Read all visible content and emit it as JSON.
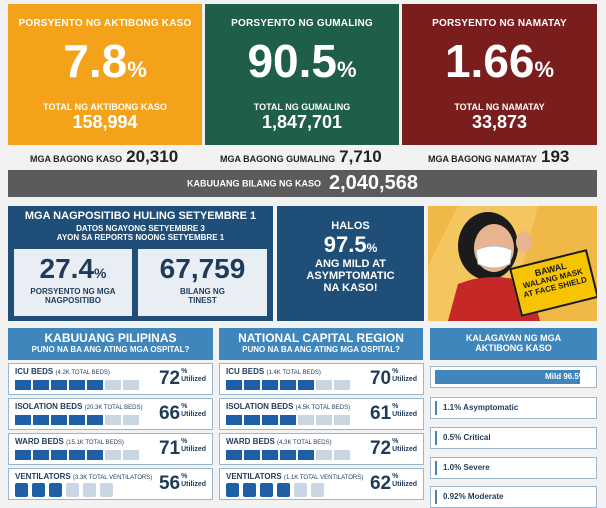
{
  "colors": {
    "orange": "#f5a21b",
    "green": "#1f5e4b",
    "maroon": "#7a1d1d",
    "navy": "#1f4e79",
    "band": "#5b5b5b",
    "section": "#3f86bc"
  },
  "active": {
    "label": "PORSYENTO NG AKTIBONG KASO",
    "pct": "7.8",
    "pct_sign": "%",
    "total_label": "TOTAL NG AKTIBONG KASO",
    "total": "158,994"
  },
  "recovered": {
    "label": "PORSYENTO NG GUMALING",
    "pct": "90.5",
    "pct_sign": "%",
    "total_label": "TOTAL NG GUMALING",
    "total": "1,847,701"
  },
  "deaths": {
    "label": "PORSYENTO NG NAMATAY",
    "pct": "1.66",
    "pct_sign": "%",
    "total_label": "TOTAL NG NAMATAY",
    "total": "33,873"
  },
  "new": {
    "cases_label": "MGA BAGONG KASO",
    "cases": "20,310",
    "recovered_label": "MGA BAGONG GUMALING",
    "recovered": "7,710",
    "deaths_label": "MGA BAGONG NAMATAY",
    "deaths": "193"
  },
  "total_cases": {
    "label": "KABUUANG BILANG NG KASO",
    "value": "2,040,568"
  },
  "positivity": {
    "title": "MGA NAGPOSITIBO HULING SETYEMBRE 1",
    "sub1": "DATOS NGAYONG SETYEMBRE 3",
    "sub2": "AYON SA REPORTS NOONG SETYEMBRE 1",
    "rate": "27.4",
    "rate_sign": "%",
    "rate_label1": "PORSYENTO NG MGA",
    "rate_label2": "NAGPOSITIBO",
    "tested": "67,759",
    "tested_label1": "BILANG NG",
    "tested_label2": "TINEST"
  },
  "mild": {
    "line1": "HALOS",
    "pct": "97.5",
    "pct_sign": "%",
    "line2": "ANG MILD AT",
    "line3": "ASYMPTOMATIC",
    "line4": "NA KASO!"
  },
  "banner": {
    "line1": "BAWAL",
    "line2": "WALANG MASK",
    "line3": "AT FACE SHIELD"
  },
  "ph": {
    "title": "KABUUANG PILIPINAS",
    "subtitle": "PUNO NA BA ANG ATING MGA OSPITAL?",
    "rows": [
      {
        "name": "ICU BEDS",
        "detail": "(4.2K TOTAL BEDS)",
        "value": "72",
        "level": 0.72
      },
      {
        "name": "ISOLATION BEDS",
        "detail": "(20.3K TOTAL BEDS)",
        "value": "66",
        "level": 0.66
      },
      {
        "name": "WARD BEDS",
        "detail": "(15.1K TOTAL BEDS)",
        "value": "71",
        "level": 0.71
      },
      {
        "name": "VENTILATORS",
        "detail": "(3.3K TOTAL VENTILATORS)",
        "value": "56",
        "level": 0.56
      }
    ]
  },
  "ncr": {
    "title": "NATIONAL CAPITAL REGION",
    "subtitle": "PUNO NA BA ANG ATING MGA OSPITAL?",
    "rows": [
      {
        "name": "ICU BEDS",
        "detail": "(1.4K TOTAL BEDS)",
        "value": "70",
        "level": 0.7
      },
      {
        "name": "ISOLATION BEDS",
        "detail": "(4.5K TOTAL BEDS)",
        "value": "61",
        "level": 0.61
      },
      {
        "name": "WARD BEDS",
        "detail": "(4.3K TOTAL BEDS)",
        "value": "72",
        "level": 0.72
      },
      {
        "name": "VENTILATORS",
        "detail": "(1.1K TOTAL VENTILATORS)",
        "value": "62",
        "level": 0.62
      }
    ]
  },
  "pct_sign": "%",
  "utilized": "Utilized",
  "status": {
    "title1": "KALAGAYAN NG MGA",
    "title2": "AKTIBONG KASO",
    "items": [
      {
        "label": "Mild 96.5%",
        "value": 0.965
      },
      {
        "label": "1.1% Asymptomatic",
        "value": 0.011
      },
      {
        "label": "0.5% Critical",
        "value": 0.005
      },
      {
        "label": "1.0% Severe",
        "value": 0.01
      },
      {
        "label": "0.92% Moderate",
        "value": 0.0092
      }
    ]
  }
}
